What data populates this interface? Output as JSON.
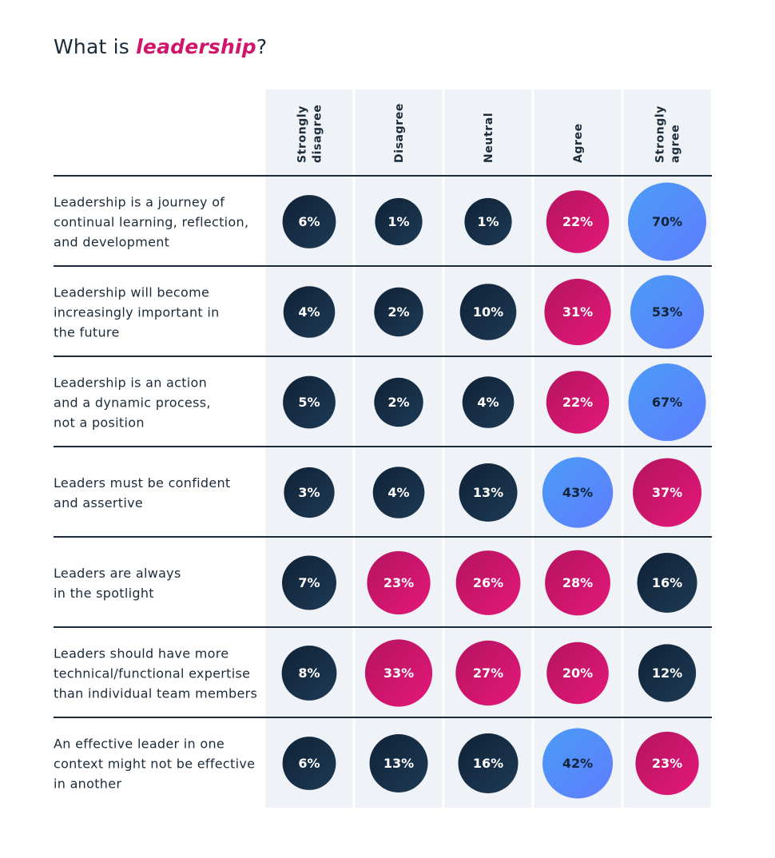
{
  "title": {
    "prefix": "What is ",
    "highlight": "leadership",
    "suffix": "?"
  },
  "colors": {
    "dark": "#162a40",
    "pink": "#cc1770",
    "blue": "#5286f7",
    "column_bg": "#eff2f7",
    "text": "#1c2b3a"
  },
  "chart_data": {
    "type": "table",
    "title": "What is leadership?",
    "columns": [
      {
        "lines": [
          "Strongly",
          "disagree"
        ]
      },
      {
        "lines": [
          "Disagree"
        ]
      },
      {
        "lines": [
          "Neutral"
        ]
      },
      {
        "lines": [
          "Agree"
        ]
      },
      {
        "lines": [
          "Strongly",
          "agree"
        ]
      }
    ],
    "rows": [
      {
        "lines": [
          "Leadership is a journey of",
          "continual learning, reflection,",
          "and development"
        ],
        "values": [
          6,
          1,
          1,
          22,
          70
        ],
        "colors": [
          "dark",
          "dark",
          "dark",
          "pink",
          "blue"
        ]
      },
      {
        "lines": [
          "Leadership will become",
          "increasingly important in",
          "the future"
        ],
        "values": [
          4,
          2,
          10,
          31,
          53
        ],
        "colors": [
          "dark",
          "dark",
          "dark",
          "pink",
          "blue"
        ]
      },
      {
        "lines": [
          "Leadership is an action",
          "and a dynamic process,",
          "not a position"
        ],
        "values": [
          5,
          2,
          4,
          22,
          67
        ],
        "colors": [
          "dark",
          "dark",
          "dark",
          "pink",
          "blue"
        ]
      },
      {
        "lines": [
          "Leaders must be confident",
          "and assertive"
        ],
        "values": [
          3,
          4,
          13,
          43,
          37
        ],
        "colors": [
          "dark",
          "dark",
          "dark",
          "blue",
          "pink"
        ]
      },
      {
        "lines": [
          "Leaders are always",
          "in the spotlight"
        ],
        "values": [
          7,
          23,
          26,
          28,
          16
        ],
        "colors": [
          "dark",
          "pink",
          "pink",
          "pink",
          "dark"
        ]
      },
      {
        "lines": [
          "Leaders should have more",
          "technical/functional expertise",
          "than individual team members"
        ],
        "values": [
          8,
          33,
          27,
          20,
          12
        ],
        "colors": [
          "dark",
          "pink",
          "pink",
          "pink",
          "dark"
        ]
      },
      {
        "lines": [
          "An effective leader in one",
          "context might not be effective",
          "in another"
        ],
        "values": [
          6,
          13,
          16,
          42,
          23
        ],
        "colors": [
          "dark",
          "dark",
          "dark",
          "blue",
          "pink"
        ]
      }
    ],
    "value_suffix": "%"
  }
}
